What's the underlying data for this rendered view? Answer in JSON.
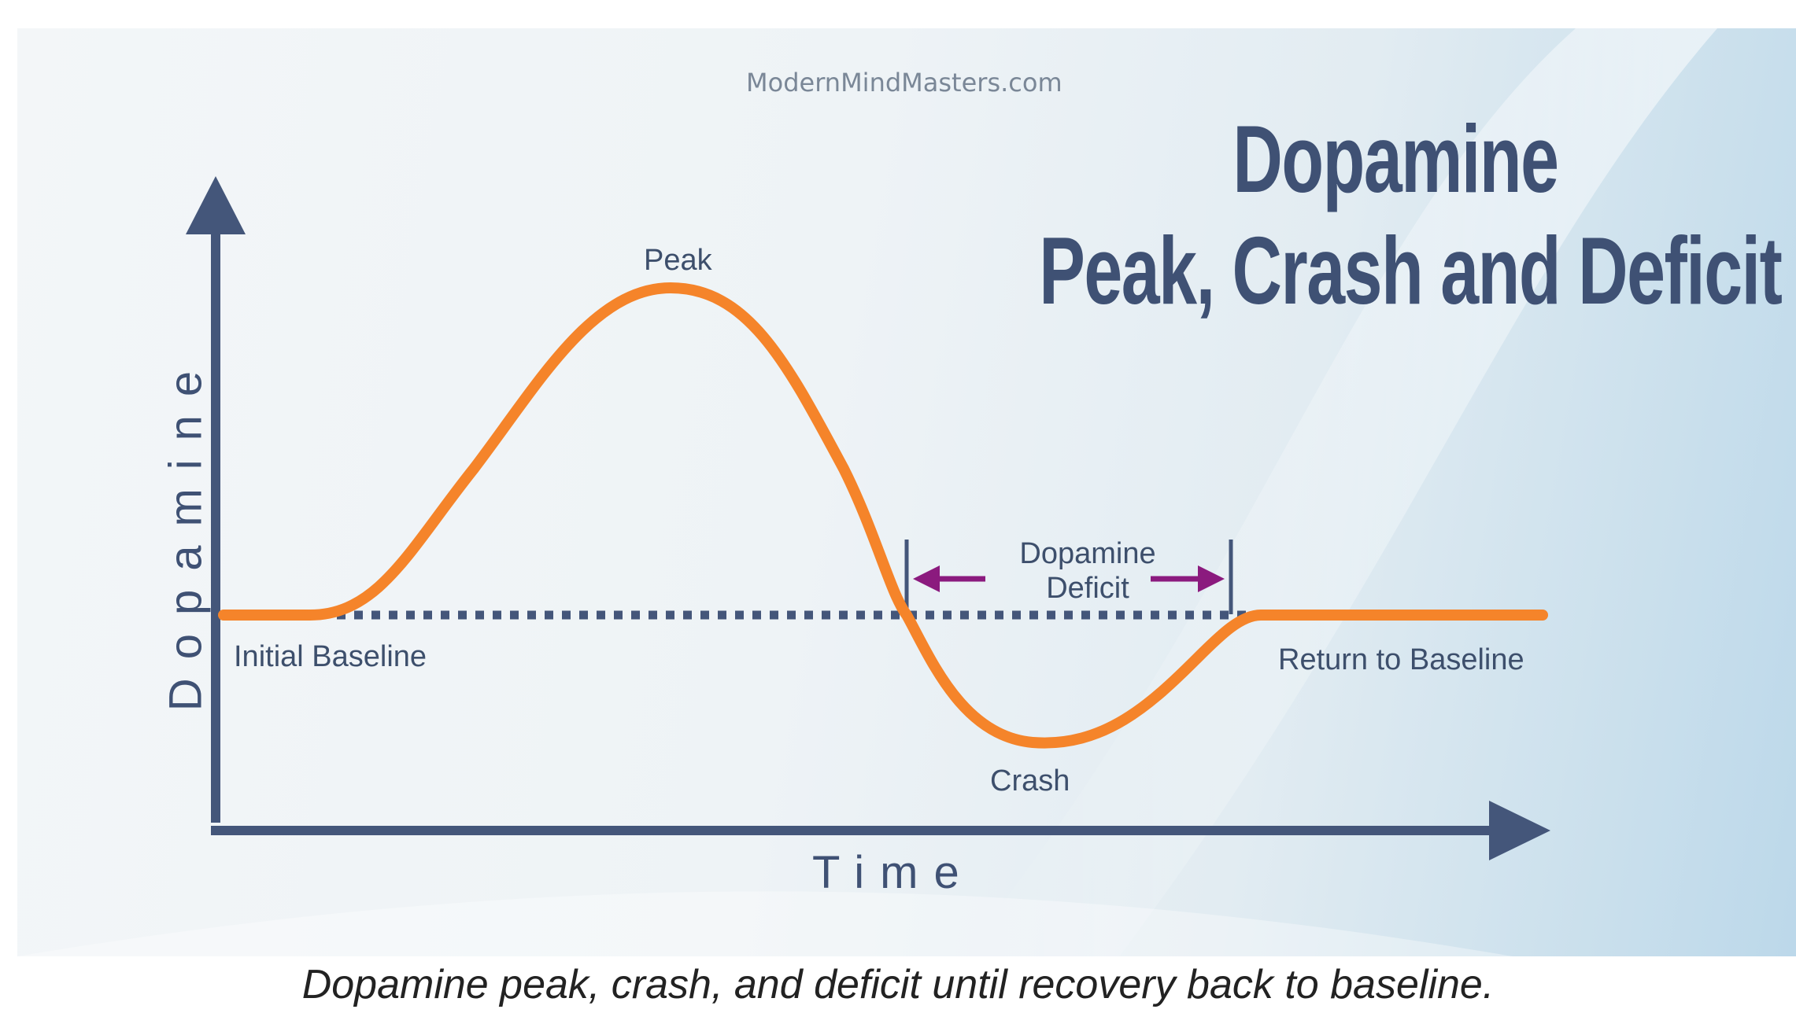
{
  "figure": {
    "watermark": "ModernMindMasters.com",
    "title_line1": "Dopamine",
    "title_line2": "Peak, Crash and Deficit",
    "y_axis_label": "Dopamine",
    "x_axis_label": "Time",
    "labels": {
      "peak": "Peak",
      "initial_baseline": "Initial Baseline",
      "return_to_baseline": "Return to Baseline",
      "crash": "Crash",
      "deficit_line1": "Dopamine",
      "deficit_line2": "Deficit"
    },
    "colors": {
      "curve": "#f5842a",
      "axis": "#44567a",
      "baseline_dots": "#44567a",
      "deficit_arrows": "#8b1a7e",
      "title": "#3f5174"
    }
  },
  "caption": "Dopamine peak, crash, and deficit until recovery back to baseline."
}
